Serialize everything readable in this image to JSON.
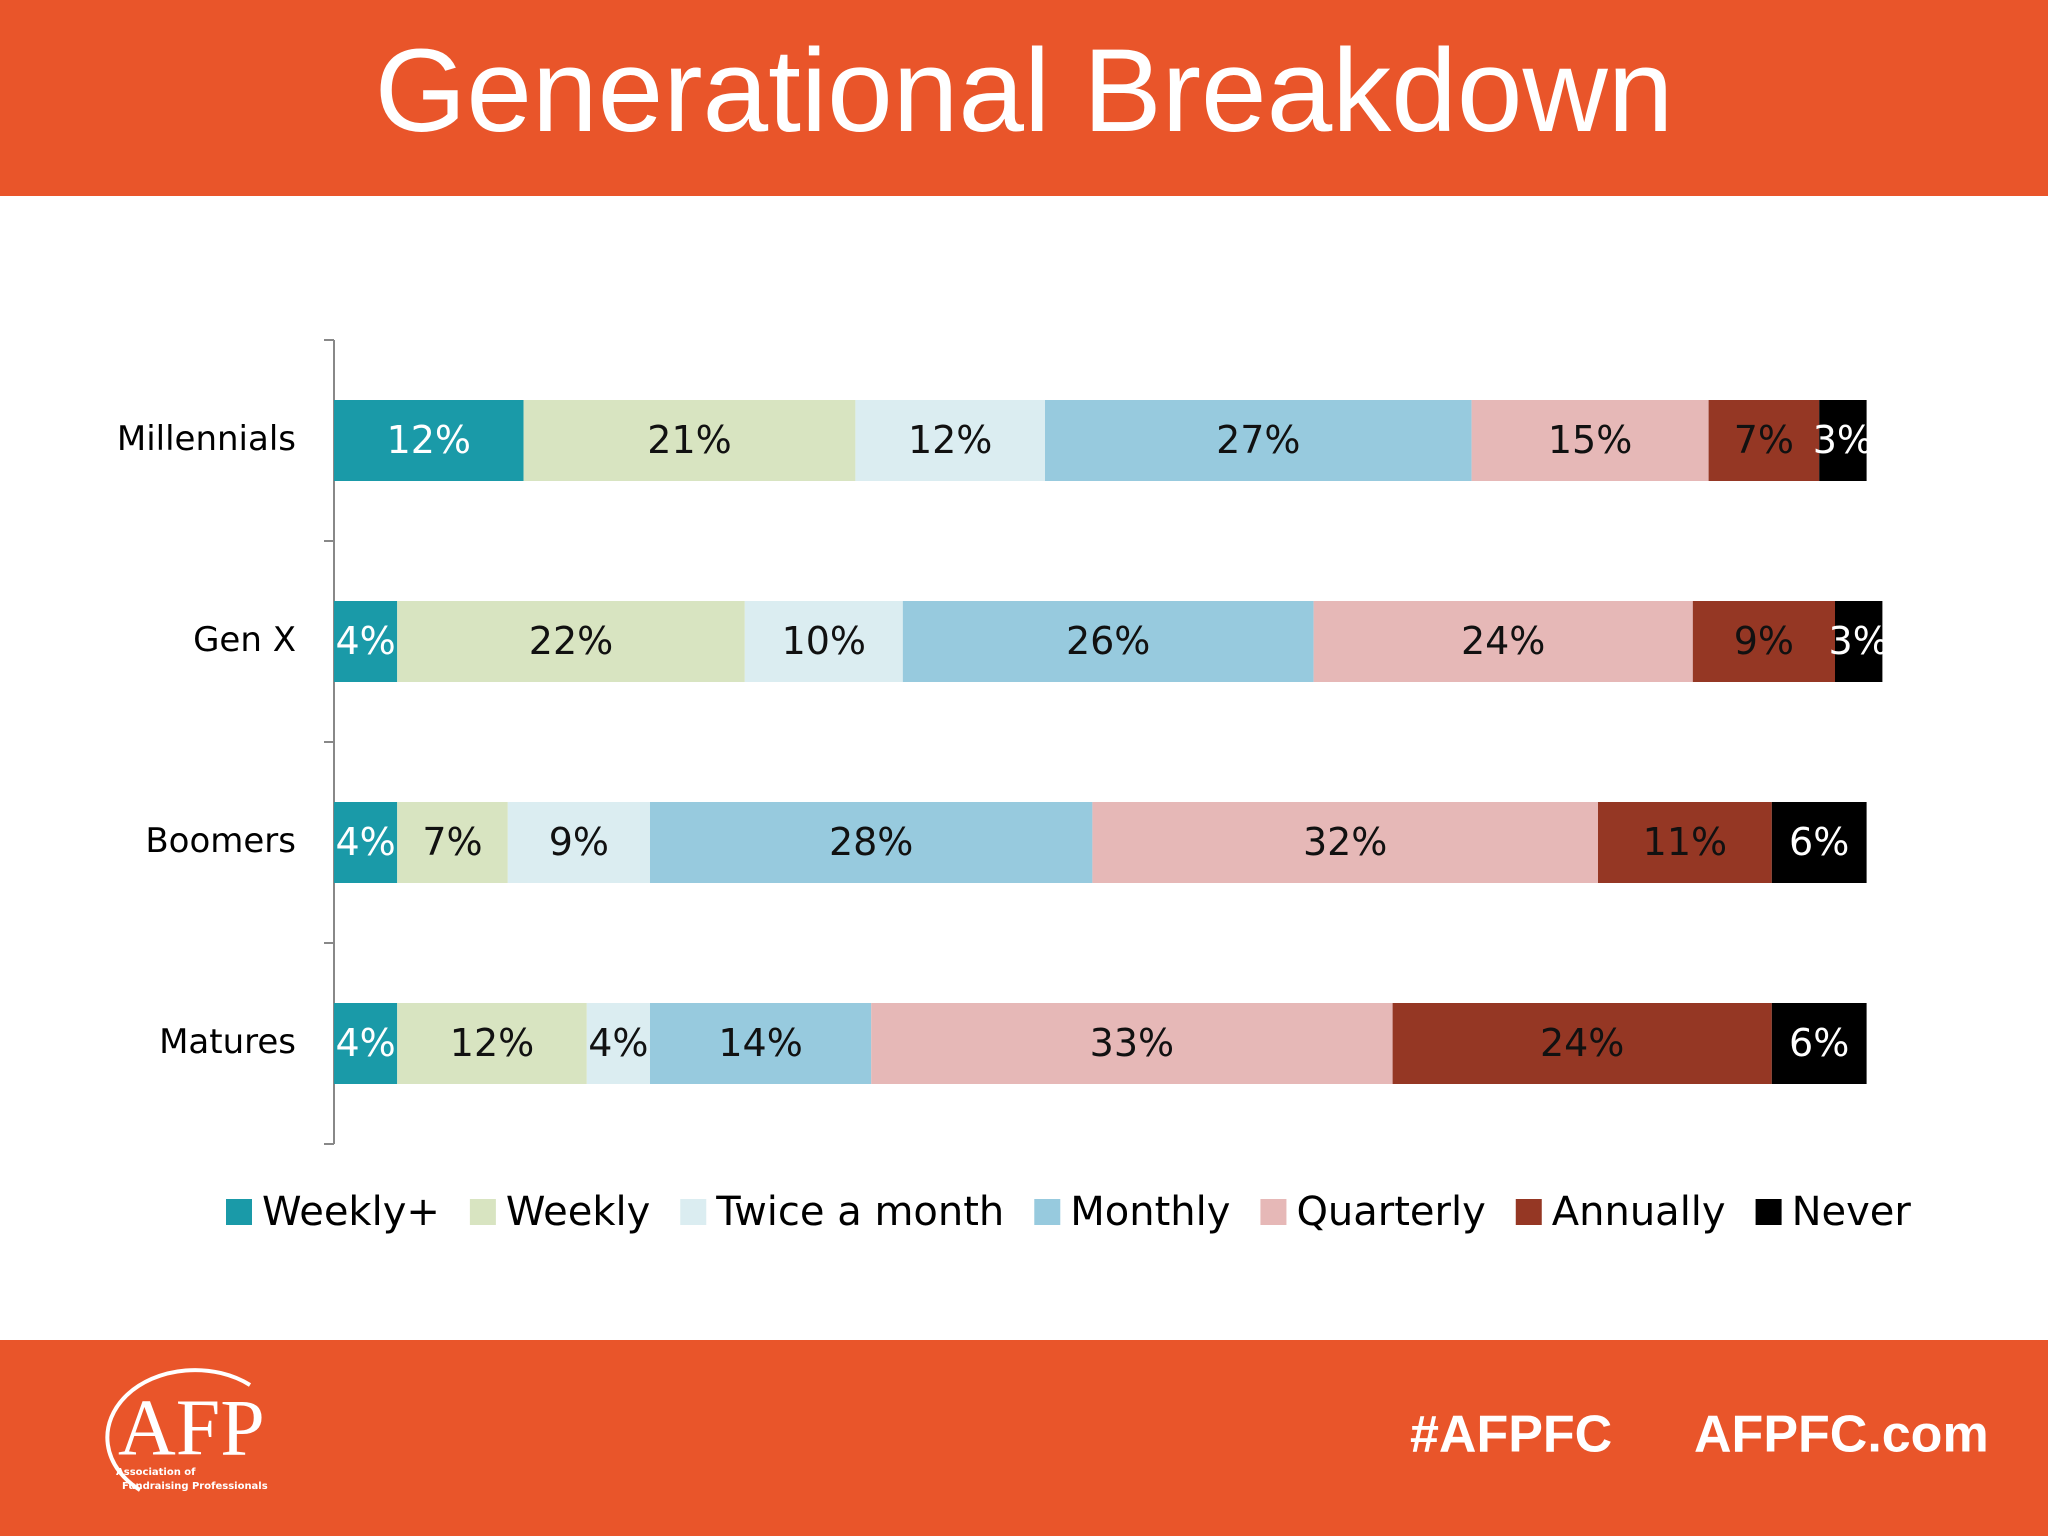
{
  "header": {
    "title": "Generational Breakdown"
  },
  "chart_data": {
    "type": "stacked-bar-horizontal",
    "categories": [
      "Millennials",
      "Gen X",
      "Boomers",
      "Matures"
    ],
    "series": [
      {
        "name": "Weekly+",
        "color": "#1a9aa8",
        "values": [
          12,
          4,
          4,
          4
        ],
        "value_labels": [
          "12%",
          "4%",
          "4%",
          "4%"
        ]
      },
      {
        "name": "Weekly",
        "color": "#d8e4c1",
        "values": [
          21,
          22,
          7,
          12
        ],
        "value_labels": [
          "21%",
          "22%",
          "7%",
          "12%"
        ]
      },
      {
        "name": "Twice a month",
        "color": "#dbedf1",
        "values": [
          12,
          10,
          9,
          4
        ],
        "value_labels": [
          "12%",
          "10%",
          "9%",
          "4%"
        ]
      },
      {
        "name": "Monthly",
        "color": "#97cade",
        "values": [
          27,
          26,
          28,
          14
        ],
        "value_labels": [
          "27%",
          "26%",
          "28%",
          "14%"
        ]
      },
      {
        "name": "Quarterly",
        "color": "#e6b8b7",
        "values": [
          15,
          24,
          32,
          33
        ],
        "value_labels": [
          "15%",
          "24%",
          "32%",
          "33%"
        ]
      },
      {
        "name": "Annually",
        "color": "#953724",
        "values": [
          7,
          9,
          11,
          24
        ],
        "value_labels": [
          "7%",
          "9%",
          "11%",
          "24%"
        ]
      },
      {
        "name": "Never",
        "color": "#000000",
        "values": [
          3,
          3,
          6,
          6
        ],
        "value_labels": [
          "3%",
          "3%",
          "6%",
          "6%"
        ]
      }
    ],
    "legend": "bottom"
  },
  "footer": {
    "logo": "AFP",
    "logo_subtitle": [
      "Association of",
      "Fundraising Professionals"
    ],
    "hashtag": "#AFPFC",
    "website": "AFPFC.com"
  }
}
